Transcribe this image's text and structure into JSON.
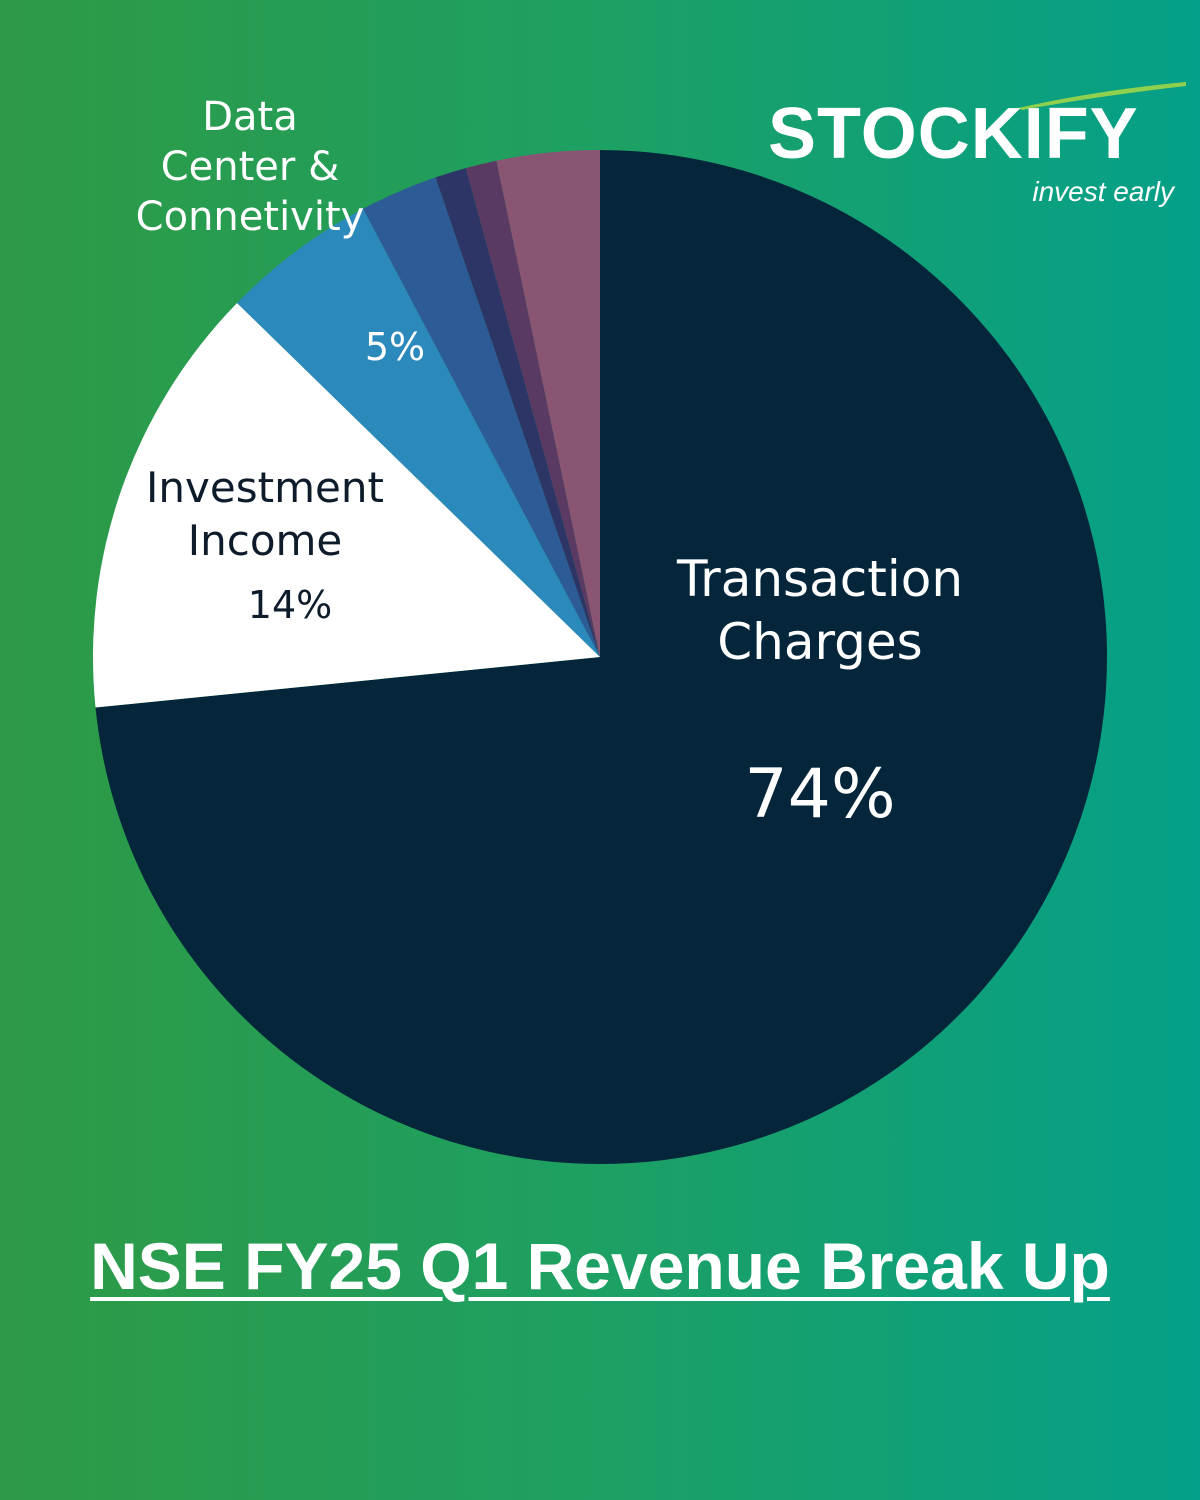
{
  "chart_data": {
    "type": "pie",
    "title": "NSE FY25 Q1 Revenue Break Up",
    "slices": [
      {
        "label": "Transaction Charges",
        "value": 74,
        "value_label": "74%",
        "color": "#04253a"
      },
      {
        "label": "Investment Income",
        "value": 14,
        "value_label": "14%",
        "color": "#ffffff"
      },
      {
        "label": "Data Center & Connetivity",
        "value": 5,
        "value_label": "5%",
        "color": "#2c89bb"
      },
      {
        "label": "",
        "value": 2.5,
        "value_label": "",
        "color": "#2d5b95"
      },
      {
        "label": "",
        "value": 1,
        "value_label": "",
        "color": "#2d3566"
      },
      {
        "label": "",
        "value": 1,
        "value_label": "",
        "color": "#5a3a63"
      },
      {
        "label": "",
        "value": 3.3,
        "value_label": "",
        "color": "#8a5572"
      }
    ]
  },
  "labels": {
    "data_center": "Data\nCenter &\nConnetivity",
    "data_center_pct": "5%",
    "investment": "Investment\nIncome",
    "investment_pct": "14%",
    "transaction": "Transaction\nCharges",
    "transaction_pct": "74%"
  },
  "logo": {
    "brand": "STOCKIFY",
    "tagline": "invest early",
    "accent_color": "#8fd14f"
  }
}
